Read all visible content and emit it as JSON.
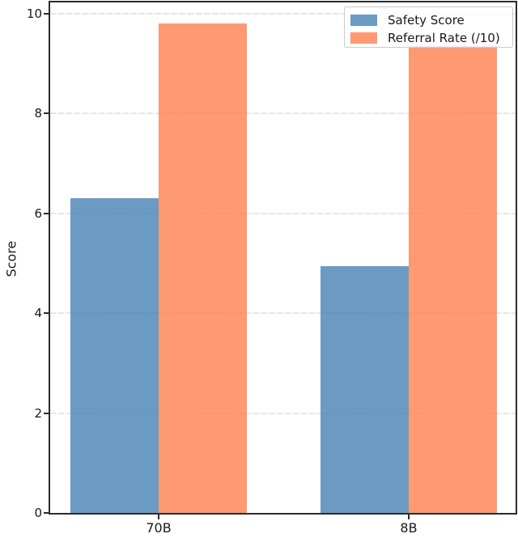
{
  "figure": {
    "background": "#ffffff"
  },
  "chart_data": {
    "type": "bar",
    "title": "",
    "categories": [
      "70B",
      "8B"
    ],
    "series": [
      {
        "name": "Safety Score",
        "color": "#4682B4",
        "alpha": 0.8,
        "values": [
          6.3,
          4.95
        ]
      },
      {
        "name": "Referral Rate (/10)",
        "color": "#FF7F50",
        "alpha": 0.8,
        "values": [
          9.8,
          9.35
        ]
      }
    ],
    "xlabel": "",
    "ylabel": "Score",
    "ylim": [
      0,
      10.23
    ],
    "yticks": [
      0,
      2,
      4,
      6,
      8,
      10
    ],
    "grid": "y",
    "grid_style": "dashed",
    "grid_color": "#e8e8e8",
    "axis_color": "#2b2b2b",
    "legend": {
      "position": "upper right"
    }
  }
}
